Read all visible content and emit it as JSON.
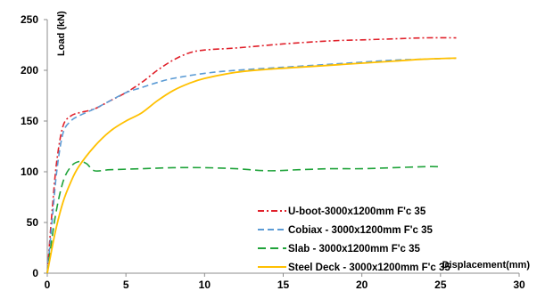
{
  "chart_data": {
    "type": "line",
    "title": "",
    "xlabel": "Displacement(mm)",
    "ylabel": "Load (kN)",
    "xlim": [
      0,
      30
    ],
    "ylim": [
      0,
      250
    ],
    "x_ticks": [
      "0",
      "5",
      "10",
      "15",
      "20",
      "25",
      "30"
    ],
    "y_ticks": [
      "0",
      "50",
      "100",
      "150",
      "200",
      "250"
    ],
    "grid": false,
    "legend_position": "bottom-right",
    "series": [
      {
        "name": "U-boot-3000x1200mm F'c 35",
        "color": "#e0202a",
        "dash": "dash-dot",
        "points": [
          [
            0,
            0
          ],
          [
            0.3,
            60
          ],
          [
            0.6,
            110
          ],
          [
            1.0,
            145
          ],
          [
            1.5,
            155
          ],
          [
            2.0,
            158
          ],
          [
            3.0,
            162
          ],
          [
            4.0,
            170
          ],
          [
            5.0,
            178
          ],
          [
            6.0,
            188
          ],
          [
            7.0,
            200
          ],
          [
            8.0,
            210
          ],
          [
            9.0,
            217
          ],
          [
            10.0,
            220
          ],
          [
            12.0,
            222
          ],
          [
            15.0,
            226
          ],
          [
            18.0,
            229
          ],
          [
            20.0,
            230
          ],
          [
            22.0,
            231
          ],
          [
            24.0,
            232
          ],
          [
            26.0,
            232
          ]
        ]
      },
      {
        "name": "Cobiax - 3000x1200mm F'c 35",
        "color": "#5b9bd5",
        "dash": "dash",
        "points": [
          [
            0,
            0
          ],
          [
            0.3,
            50
          ],
          [
            0.6,
            100
          ],
          [
            1.0,
            138
          ],
          [
            1.5,
            150
          ],
          [
            2.0,
            155
          ],
          [
            3.0,
            162
          ],
          [
            4.0,
            170
          ],
          [
            5.0,
            178
          ],
          [
            6.0,
            183
          ],
          [
            7.0,
            188
          ],
          [
            8.0,
            192
          ],
          [
            10.0,
            197
          ],
          [
            12.0,
            200
          ],
          [
            15.0,
            203
          ],
          [
            18.0,
            206
          ],
          [
            20.0,
            208
          ],
          [
            22.0,
            210
          ],
          [
            24.0,
            211
          ],
          [
            26.0,
            212
          ]
        ]
      },
      {
        "name": "Slab - 3000x1200mm F'c 35",
        "color": "#1fa33a",
        "dash": "long-dash",
        "points": [
          [
            0,
            0
          ],
          [
            0.5,
            55
          ],
          [
            1.0,
            90
          ],
          [
            1.5,
            105
          ],
          [
            2.0,
            110
          ],
          [
            2.5,
            108
          ],
          [
            3.0,
            101
          ],
          [
            4.0,
            102
          ],
          [
            6.0,
            103
          ],
          [
            8.0,
            104
          ],
          [
            10.0,
            104
          ],
          [
            12.0,
            103
          ],
          [
            14.0,
            101
          ],
          [
            16.0,
            102
          ],
          [
            18.0,
            103
          ],
          [
            20.0,
            103
          ],
          [
            22.0,
            104
          ],
          [
            24.0,
            105
          ],
          [
            25.0,
            105
          ]
        ]
      },
      {
        "name": "Steel Deck - 3000x1200mm F'c 35",
        "color": "#ffc000",
        "dash": "solid",
        "points": [
          [
            0,
            0
          ],
          [
            0.5,
            40
          ],
          [
            1.0,
            70
          ],
          [
            1.5,
            90
          ],
          [
            2.0,
            105
          ],
          [
            3.0,
            125
          ],
          [
            4.0,
            140
          ],
          [
            5.0,
            150
          ],
          [
            6.0,
            158
          ],
          [
            7.0,
            170
          ],
          [
            8.0,
            180
          ],
          [
            9.0,
            187
          ],
          [
            10.0,
            192
          ],
          [
            12.0,
            198
          ],
          [
            14.0,
            201
          ],
          [
            16.0,
            203
          ],
          [
            18.0,
            205
          ],
          [
            20.0,
            207
          ],
          [
            22.0,
            209
          ],
          [
            24.0,
            211
          ],
          [
            26.0,
            212
          ]
        ]
      }
    ]
  }
}
